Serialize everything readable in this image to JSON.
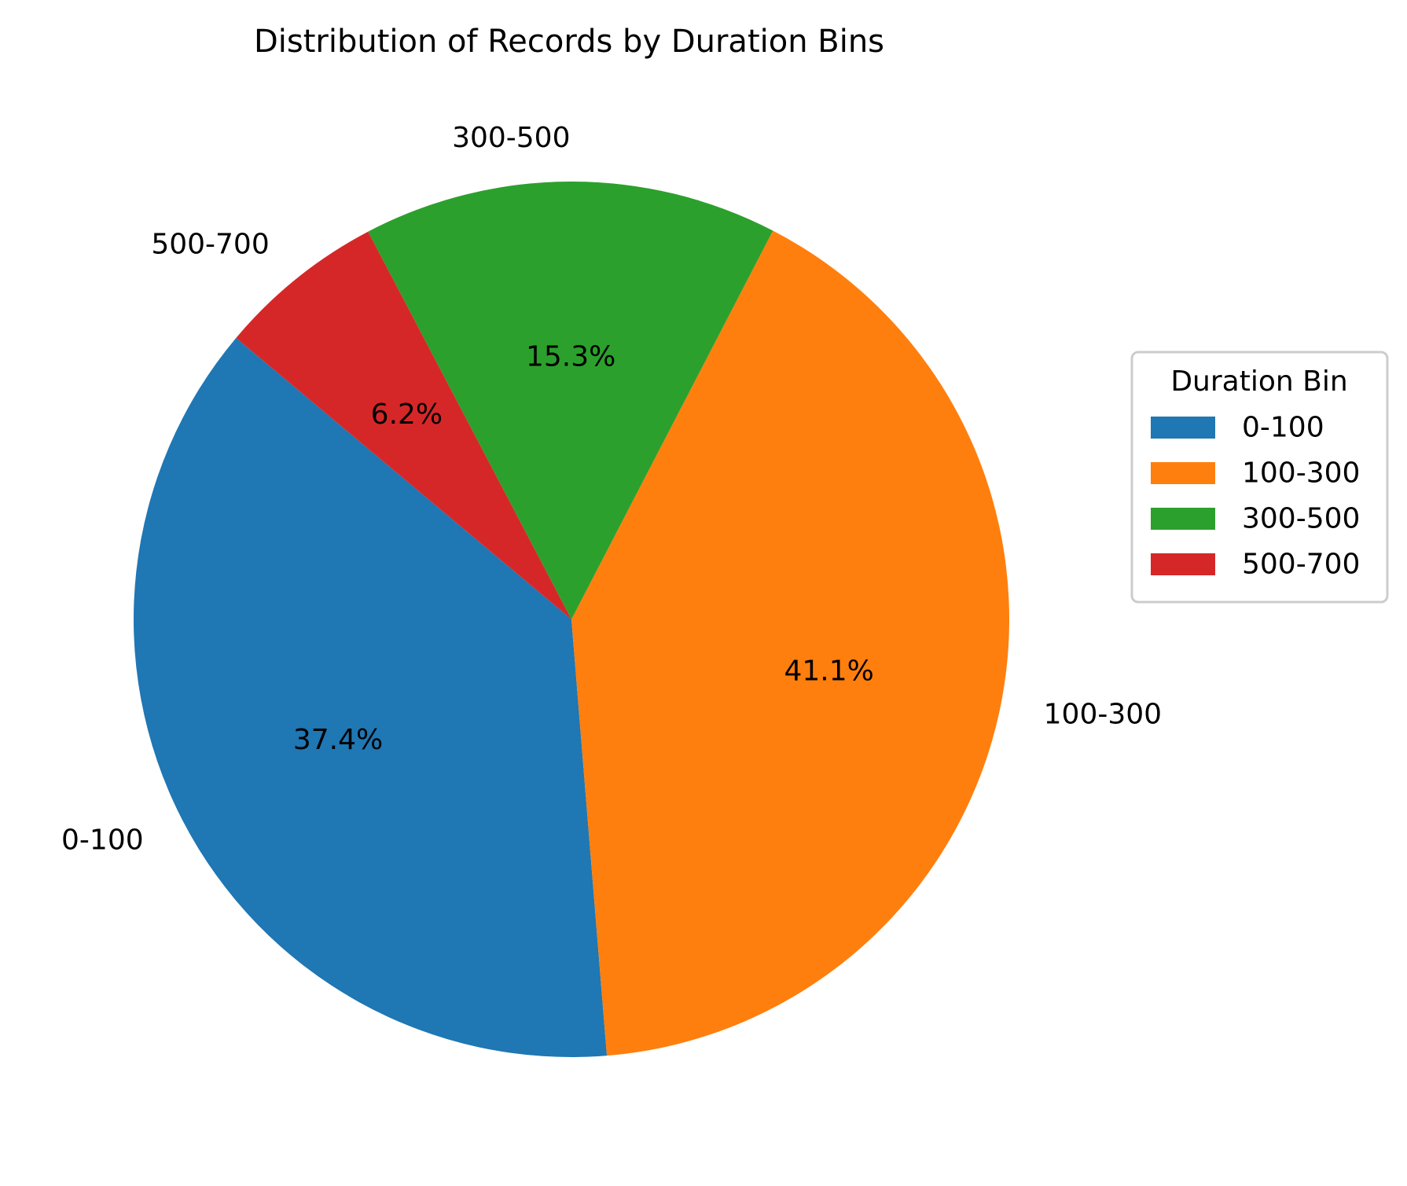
{
  "chart_data": {
    "type": "pie",
    "title": "Distribution of Records by Duration Bins",
    "categories": [
      "0-100",
      "100-300",
      "300-500",
      "500-700"
    ],
    "values": [
      37.4,
      41.1,
      15.3,
      6.2
    ],
    "percent_labels": [
      "37.4%",
      "41.1%",
      "15.3%",
      "6.2%"
    ],
    "colors": [
      "#1f77b4",
      "#ff7f0e",
      "#2ca02c",
      "#d62728"
    ],
    "legend": {
      "title": "Duration Bin",
      "placement": "center-right",
      "entries": [
        "0-100",
        "100-300",
        "300-500",
        "500-700"
      ]
    }
  }
}
